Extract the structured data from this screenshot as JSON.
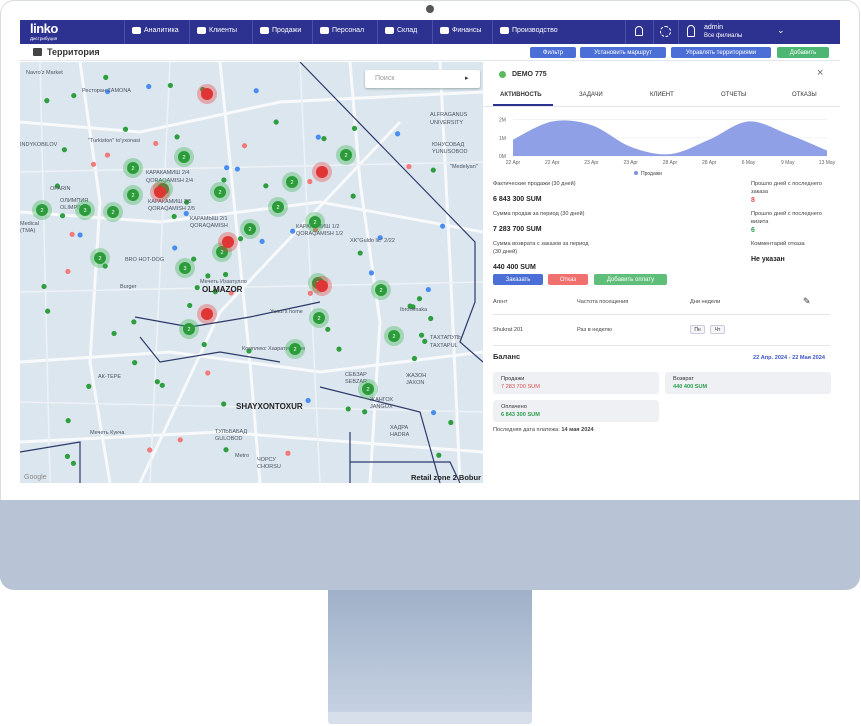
{
  "header": {
    "logo": "linko",
    "logo_sub": "Дистрибуция",
    "nav": [
      "Аналитика",
      "Клиенты",
      "Продажи",
      "Персонал",
      "Склад",
      "Финансы",
      "Производство"
    ],
    "user": "admin",
    "branch": "Все филиалы"
  },
  "toolbar": {
    "title": "Территория",
    "buttons": [
      "Фильтр",
      "Установить маршрут",
      "Управлять территориями",
      "Добавить"
    ]
  },
  "map": {
    "search": "Поиск",
    "zone": "Retail zone 2 Bobur",
    "attribution": "Google",
    "labels": [
      "Navro'z Market",
      "Ресторан ZAMONA",
      "ALFRAGANUS",
      "UNIVERSITY",
      "INDYKOBILOV",
      "\"Turkiston\" to'yxonasi",
      "OFARIN",
      "ОЛИМПИЯ",
      "OLIMPIYA",
      "Medical",
      "(TMA)",
      "КАРАКАМИШ 2/4",
      "QORAQAMISH 2/4",
      "КАРАКАМИШ 2/5",
      "QORAQAMISH 2/5",
      "КАРАМЫШ 2/1",
      "QORAQAMISH",
      "КАРАКАМИШ 1/2",
      "QORAQAMISH 1/2",
      "XK\"Guldo lic\" 2/22",
      "BRO HOT-DOG",
      "Burger",
      "Мечеть Иззатулло",
      "OLMAZOR",
      "Yusuf's home",
      "Ibrohimaka",
      "ТАХТАПУЛЬ",
      "TAXTAPUL",
      "АК-ТЕРЕ",
      "Комплекс Хазрати Имам",
      "СЕБЗАР",
      "SEBZAR",
      "ЖАЗОН",
      "JAXON",
      "ЖАНГОХ",
      "JANGOX",
      "SHAYXONTOXUR",
      "ТУЛЬБАБАД",
      "GULOBOD",
      "Мечеть Кукча",
      "ХАДРА",
      "HADRA",
      "Metro",
      "ЧОРСУ",
      "CHORSU",
      "ЮНУСОБАД",
      "YUNUSOBOD",
      "\"Medelyan\""
    ],
    "clusters": [
      "2",
      "2",
      "2",
      "2",
      "2",
      "3",
      "2",
      "2",
      "2",
      "2",
      "2",
      "2",
      "2",
      "3",
      "2",
      "2",
      "2",
      "2",
      "2",
      "2",
      "2",
      "2",
      "2"
    ]
  },
  "panel": {
    "client": "DEMO 775",
    "tabs": [
      "АКТИВНОСТЬ",
      "ЗАДАЧИ",
      "КЛИЕНТ",
      "ОТЧЕТЫ",
      "ОТКАЗЫ"
    ],
    "chart": {
      "type": "area",
      "categories": [
        "22 Apr",
        "22 Apr",
        "23 Apr",
        "23 Apr",
        "28 Apr",
        "28 Apr",
        "6 May",
        "9 May",
        "13 May"
      ],
      "series": [
        {
          "name": "Продажи",
          "color": "#7d8fe3",
          "values": [
            0.9,
            1.9,
            1.7,
            0.5,
            0.1,
            0.9,
            1.9,
            1.2,
            0.3
          ]
        }
      ],
      "ylim": [
        0,
        2.2
      ],
      "yticks": [
        {
          "value": 0,
          "label": "0M"
        },
        {
          "value": 1,
          "label": "1M"
        },
        {
          "value": 2,
          "label": "2M"
        }
      ]
    },
    "stats_left": [
      {
        "label": "Фактические продажи (30 дней)",
        "value": "6 843 300 SUM"
      },
      {
        "label": "Сумма продаж за период (30 дней)",
        "value": "7 283 700 SUM"
      },
      {
        "label": "Сумма возврата с заказов за период (30 дней)",
        "value": "440 400 SUM"
      }
    ],
    "stats_right": [
      {
        "label": "Прошло дней с последнего заказа",
        "value": "8"
      },
      {
        "label": "Прошло дней с последнего визита",
        "value": "6"
      },
      {
        "label": "Комментарий отказа",
        "value": "Не указан"
      }
    ],
    "actions": [
      "Заказать",
      "Отказ",
      "Добавить оплату"
    ],
    "schedule": {
      "columns": [
        "Агент",
        "Частота посещения",
        "Дни недели"
      ],
      "row": {
        "agent": "Shukrat 201",
        "frequency": "Раз в неделю",
        "days": [
          "Пн",
          "Чт"
        ]
      }
    },
    "balance": {
      "title": "Баланс",
      "period": "22 Апр. 2024 - 22 Мая 2024",
      "cards": [
        {
          "label": "Продажи",
          "value": "7 283 700 SUM"
        },
        {
          "label": "Возврат",
          "value": "440 400 SUM"
        },
        {
          "label": "Оплачено",
          "value": "6 843 300 SUM"
        }
      ],
      "last_payment_label": "Последняя дата платежа:",
      "last_payment": "14 мая 2024"
    }
  }
}
